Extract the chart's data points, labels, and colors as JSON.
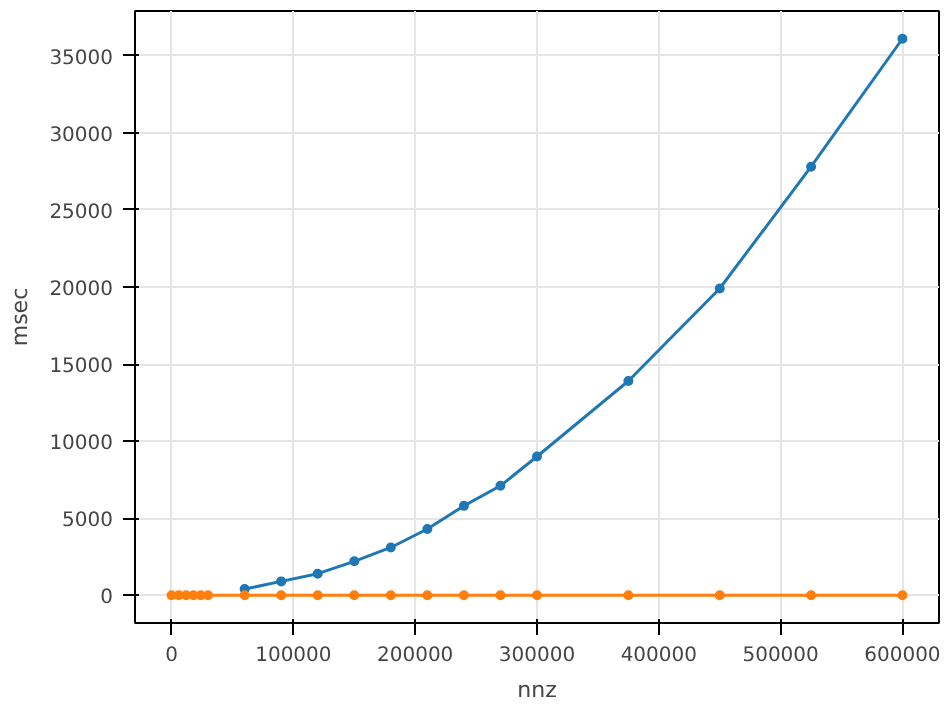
{
  "chart_data": {
    "type": "line",
    "xlabel": "nnz",
    "ylabel": "msec",
    "x": [
      0,
      6000,
      12000,
      18000,
      24000,
      30000,
      60000,
      90000,
      120000,
      150000,
      180000,
      210000,
      240000,
      270000,
      300000,
      375000,
      450000,
      525000,
      600000
    ],
    "series": [
      {
        "color": "#1f77b4",
        "values": [
          null,
          null,
          null,
          null,
          null,
          null,
          400,
          900,
          1400,
          2200,
          3100,
          4300,
          5800,
          7100,
          9000,
          13900,
          19900,
          27800,
          36100
        ]
      },
      {
        "color": "#ff7f0e",
        "values": [
          0,
          0,
          0,
          0,
          0,
          0,
          0,
          0,
          0,
          0,
          0,
          0,
          0,
          0,
          0,
          0,
          0,
          0,
          0
        ]
      }
    ],
    "xlim": [
      -30000,
      630000
    ],
    "ylim": [
      -1800,
      37900
    ],
    "xticks": [
      0,
      100000,
      200000,
      300000,
      400000,
      500000,
      600000
    ],
    "yticks": [
      0,
      5000,
      10000,
      15000,
      20000,
      25000,
      30000,
      35000
    ],
    "grid": true,
    "marker": "circle",
    "line_style": "solid"
  }
}
